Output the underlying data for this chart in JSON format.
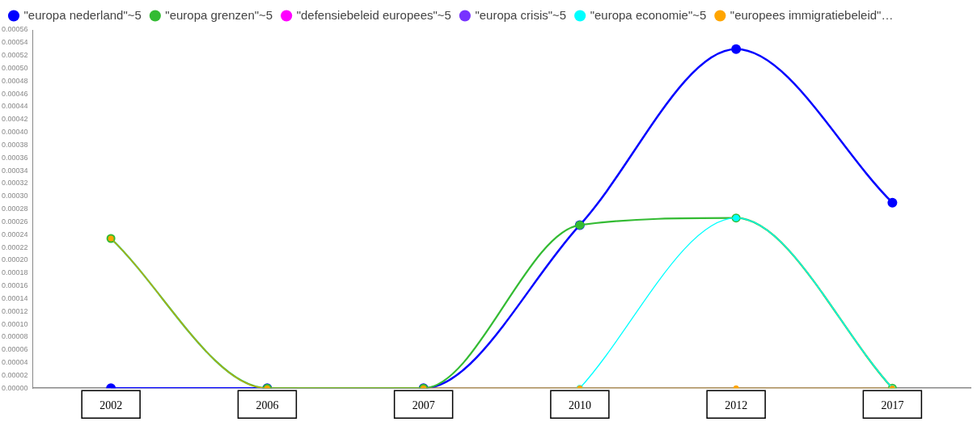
{
  "chart_data": {
    "type": "line",
    "categories": [
      "2002",
      "2006",
      "2007",
      "2010",
      "2012",
      "2017"
    ],
    "series": [
      {
        "name": "\"europa nederland\"~5",
        "color": "#0000ff",
        "values": [
          0,
          0,
          0,
          0.000255,
          0.00053,
          0.00029
        ]
      },
      {
        "name": "\"europa grenzen\"~5",
        "color": "#33bb33",
        "values": [
          0.000234,
          0,
          0,
          0.000255,
          0.000266,
          0
        ]
      },
      {
        "name": "\"defensiebeleid europees\"~5",
        "color": "#ff00ff",
        "values": [
          null,
          null,
          null,
          null,
          null,
          null
        ]
      },
      {
        "name": "\"europa crisis\"~5",
        "color": "#7733ff",
        "values": [
          null,
          null,
          null,
          null,
          null,
          null
        ]
      },
      {
        "name": "\"europa economie\"~5",
        "color": "#00ffff",
        "values": [
          null,
          null,
          null,
          0,
          0.000266,
          0
        ]
      },
      {
        "name": "\"europees immigratiebeleid\"…",
        "color": "#ffa500",
        "values": [
          0.000234,
          0,
          0,
          0,
          0,
          0
        ]
      }
    ],
    "ylim": [
      0,
      0.00056
    ],
    "yticks": [
      {
        "value": 0,
        "label": "0.00000"
      },
      {
        "value": 2e-05,
        "label": "0.00002"
      },
      {
        "value": 4e-05,
        "label": "0.00004"
      },
      {
        "value": 6e-05,
        "label": "0.00006"
      },
      {
        "value": 8e-05,
        "label": "0.00008"
      },
      {
        "value": 0.0001,
        "label": "0.00010"
      },
      {
        "value": 0.00012,
        "label": "0.00012"
      },
      {
        "value": 0.00014,
        "label": "0.00014"
      },
      {
        "value": 0.00016,
        "label": "0.00016"
      },
      {
        "value": 0.00018,
        "label": "0.00018"
      },
      {
        "value": 0.0002,
        "label": "0.00020"
      },
      {
        "value": 0.00022,
        "label": "0.00022"
      },
      {
        "value": 0.00024,
        "label": "0.00024"
      },
      {
        "value": 0.00026,
        "label": "0.00026"
      },
      {
        "value": 0.00028,
        "label": "0.00028"
      },
      {
        "value": 0.0003,
        "label": "0.00030"
      },
      {
        "value": 0.00032,
        "label": "0.00032"
      },
      {
        "value": 0.00034,
        "label": "0.00034"
      },
      {
        "value": 0.00036,
        "label": "0.00036"
      },
      {
        "value": 0.00038,
        "label": "0.00038"
      },
      {
        "value": 0.0004,
        "label": "0.00040"
      },
      {
        "value": 0.00042,
        "label": "0.00042"
      },
      {
        "value": 0.00044,
        "label": "0.00044"
      },
      {
        "value": 0.00046,
        "label": "0.00046"
      },
      {
        "value": 0.00048,
        "label": "0.00048"
      },
      {
        "value": 0.0005,
        "label": "0.00050"
      },
      {
        "value": 0.00052,
        "label": "0.00052"
      },
      {
        "value": 0.00054,
        "label": "0.00054"
      },
      {
        "value": 0.00056,
        "label": "0.00056"
      }
    ],
    "grid": false,
    "legend": "top",
    "marker": "circle",
    "line_style": "solid"
  }
}
